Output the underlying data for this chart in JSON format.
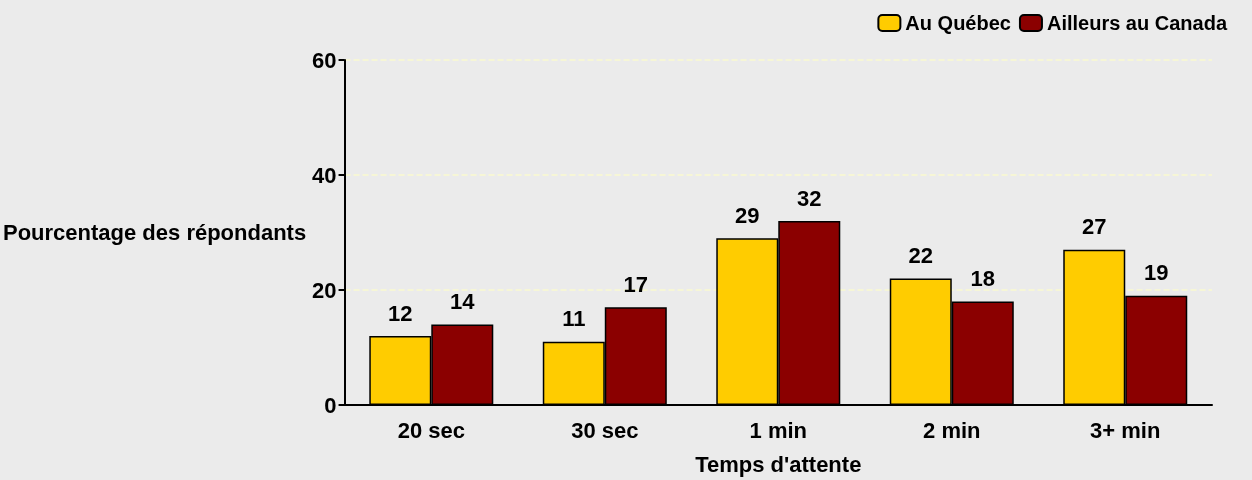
{
  "chart_data": {
    "type": "bar",
    "xlabel": "Temps d'attente",
    "ylabel": "Pourcentage des répondants",
    "categories": [
      "20 sec",
      "30 sec",
      "1 min",
      "2 min",
      "3+ min"
    ],
    "series": [
      {
        "name": "Au Québec",
        "color": "#ffcc00",
        "values": [
          12,
          11,
          29,
          22,
          27
        ]
      },
      {
        "name": "Ailleurs au Canada",
        "color": "#8b0000",
        "values": [
          14,
          17,
          32,
          18,
          19
        ]
      }
    ],
    "ylim": [
      0,
      60
    ],
    "yticks": [
      0,
      20,
      40,
      60
    ],
    "grid": "y",
    "legend": "top right",
    "data_labels": true
  }
}
